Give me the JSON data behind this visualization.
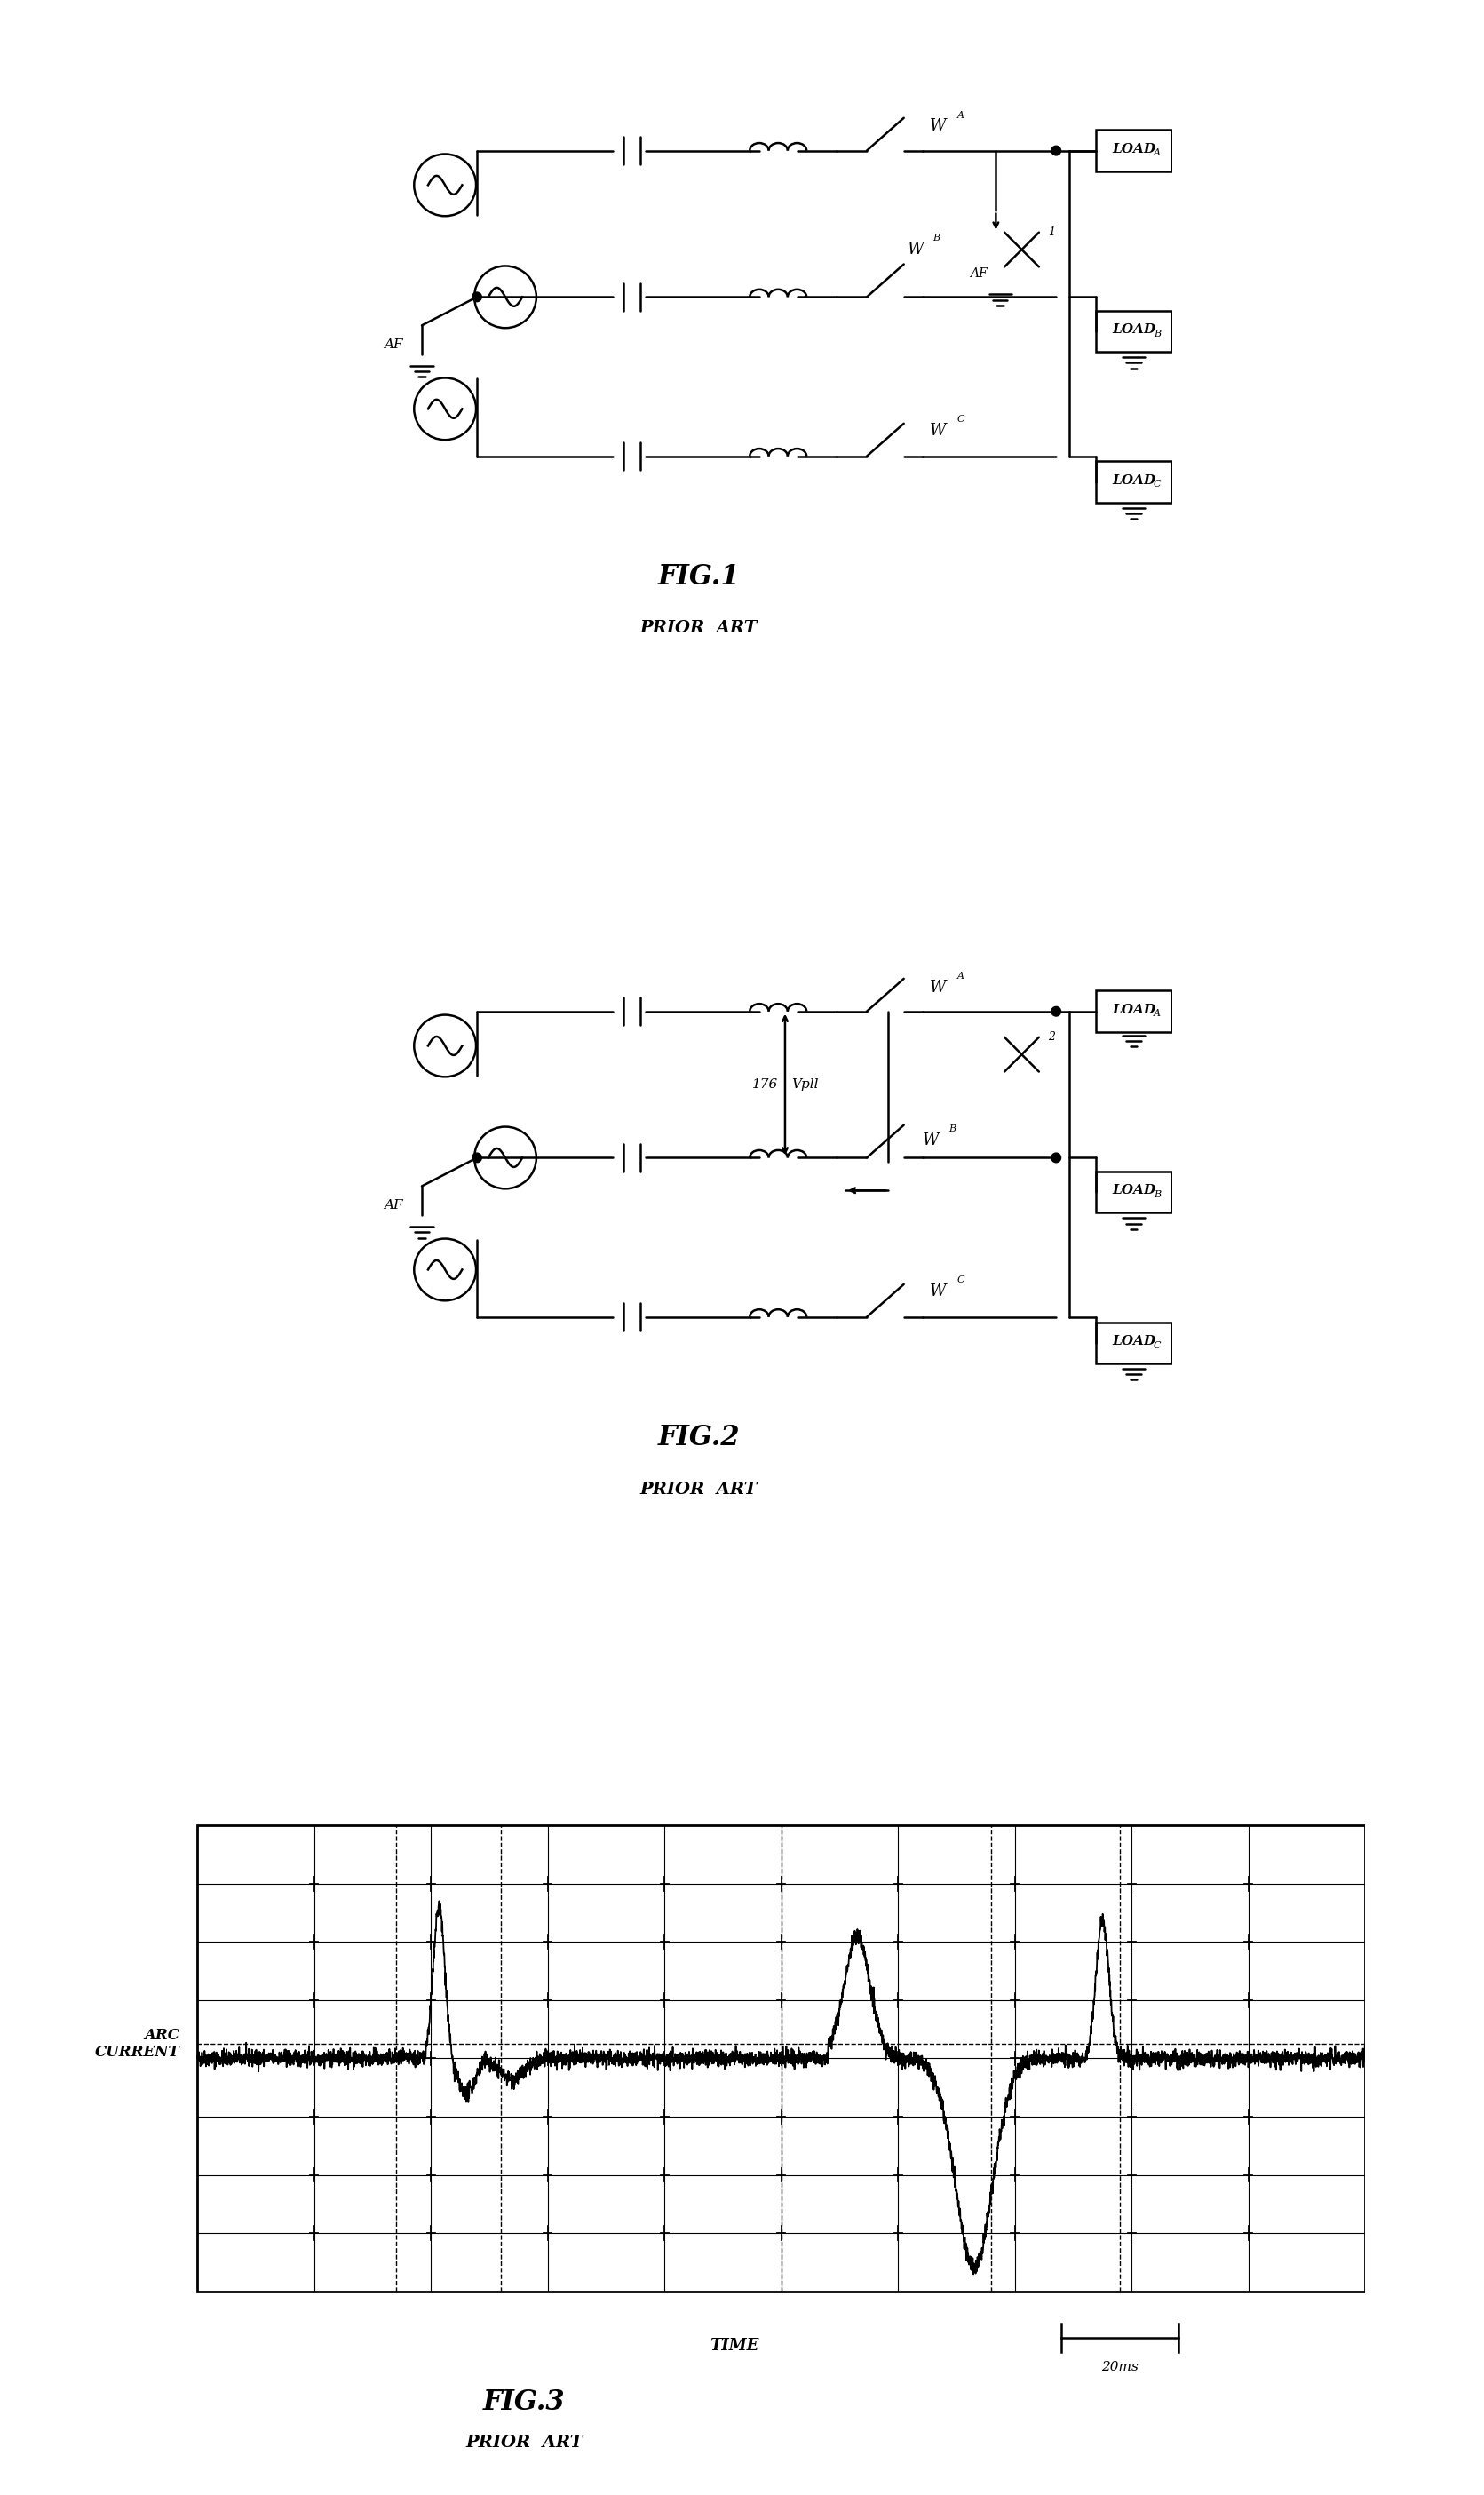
{
  "fig_width": 16.71,
  "fig_height": 28.09,
  "bg_color": "#ffffff",
  "line_color": "#000000",
  "fig1_title": "FIG.1",
  "fig2_title": "FIG.2",
  "fig3_title": "FIG.3",
  "prior_art": "PRIOR  ART",
  "arc_current_label": "ARC\nCURRENT",
  "time_label": "TIME",
  "scale_label": "20ms",
  "wa_label": "W",
  "wa_sub": "A",
  "wb_label": "W",
  "wb_sub": "B",
  "wc_label": "W",
  "wc_sub": "C",
  "load_a_main": "LOAD",
  "load_a_sub": "A",
  "load_b_main": "LOAD",
  "load_b_sub": "B",
  "load_c_main": "LOAD",
  "load_c_sub": "C",
  "af_label": "AF",
  "vp_label": "Vpll",
  "num_176": "176",
  "superscript_1": "1",
  "superscript_2": "2"
}
